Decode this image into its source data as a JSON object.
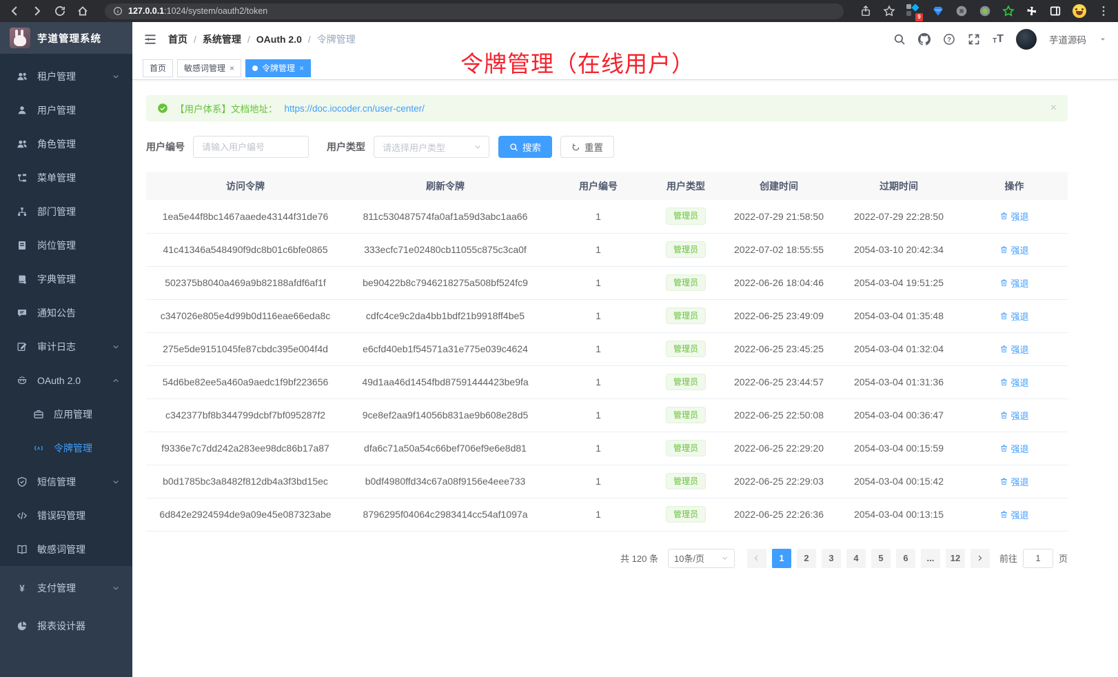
{
  "browser": {
    "url_host": "127.0.0.1",
    "url_path": ":1024/system/oauth2/token",
    "extension_badge": "9"
  },
  "app": {
    "logo_title": "芋道管理系统"
  },
  "sidebar": {
    "items": [
      {
        "id": "tenant",
        "label": "租户管理",
        "icon": "people",
        "arrow": "down",
        "section": "dark"
      },
      {
        "id": "user",
        "label": "用户管理",
        "icon": "user",
        "section": "dark"
      },
      {
        "id": "role",
        "label": "角色管理",
        "icon": "people",
        "section": "dark"
      },
      {
        "id": "menu",
        "label": "菜单管理",
        "icon": "tree",
        "section": "dark"
      },
      {
        "id": "dept",
        "label": "部门管理",
        "icon": "org",
        "section": "dark"
      },
      {
        "id": "post",
        "label": "岗位管理",
        "icon": "badge",
        "section": "dark"
      },
      {
        "id": "dict",
        "label": "字典管理",
        "icon": "dict",
        "section": "dark"
      },
      {
        "id": "notice",
        "label": "通知公告",
        "icon": "chat",
        "section": "dark"
      },
      {
        "id": "audit-log",
        "label": "审计日志",
        "icon": "editlog",
        "arrow": "down",
        "section": "dark"
      },
      {
        "id": "oauth2",
        "label": "OAuth 2.0",
        "icon": "robot",
        "arrow": "up",
        "section": "dark"
      },
      {
        "id": "oauth2-app",
        "label": "应用管理",
        "icon": "suitcase",
        "section": "dark",
        "sub": true
      },
      {
        "id": "oauth2-token",
        "label": "令牌管理",
        "icon": "signal",
        "section": "dark",
        "sub": true,
        "active": true
      },
      {
        "id": "sms",
        "label": "短信管理",
        "icon": "shield",
        "arrow": "down",
        "section": "dark"
      },
      {
        "id": "errcode",
        "label": "错误码管理",
        "icon": "code",
        "section": "dark"
      },
      {
        "id": "sensitive-word",
        "label": "敏感词管理",
        "icon": "openbook",
        "section": "dark"
      },
      {
        "id": "pay",
        "label": "支付管理",
        "icon": "yen",
        "arrow": "down",
        "section": "root"
      },
      {
        "id": "report",
        "label": "报表设计器",
        "icon": "pie",
        "section": "root"
      }
    ]
  },
  "header": {
    "breadcrumb": [
      "首页",
      "系统管理",
      "OAuth 2.0",
      "令牌管理"
    ],
    "username": "芋道源码"
  },
  "tabs": [
    {
      "label": "首页",
      "closable": false,
      "active": false
    },
    {
      "label": "敏感词管理",
      "closable": true,
      "active": false
    },
    {
      "label": "令牌管理",
      "closable": true,
      "active": true
    }
  ],
  "overlay": {
    "title": "令牌管理（在线用户）",
    "color": "#f5222d"
  },
  "alert": {
    "text": "【用户体系】文档地址：",
    "link": "https://doc.iocoder.cn/user-center/",
    "close": "×"
  },
  "filters": {
    "user_id_label": "用户编号",
    "user_id_placeholder": "请输入用户编号",
    "user_type_label": "用户类型",
    "user_type_placeholder": "请选择用户类型",
    "search_label": "搜索",
    "reset_label": "重置"
  },
  "table": {
    "columns": [
      "访问令牌",
      "刷新令牌",
      "用户编号",
      "用户类型",
      "创建时间",
      "过期时间",
      "操作"
    ],
    "rows": [
      [
        "1ea5e44f8bc1467aaede43144f31de76",
        "811c530487574fa0af1a59d3abc1aa66",
        "1",
        "管理员",
        "2022-07-29 21:58:50",
        "2022-07-29 22:28:50",
        "强退"
      ],
      [
        "41c41346a548490f9dc8b01c6bfe0865",
        "333ecfc71e02480cb11055c875c3ca0f",
        "1",
        "管理员",
        "2022-07-02 18:55:55",
        "2054-03-10 20:42:34",
        "强退"
      ],
      [
        "502375b8040a469a9b82188afdf6af1f",
        "be90422b8c7946218275a508bf524fc9",
        "1",
        "管理员",
        "2022-06-26 18:04:46",
        "2054-03-04 19:51:25",
        "强退"
      ],
      [
        "c347026e805e4d99b0d116eae66eda8c",
        "cdfc4ce9c2da4bb1bdf21b9918ff4be5",
        "1",
        "管理员",
        "2022-06-25 23:49:09",
        "2054-03-04 01:35:48",
        "强退"
      ],
      [
        "275e5de9151045fe87cbdc395e004f4d",
        "e6cfd40eb1f54571a31e775e039c4624",
        "1",
        "管理员",
        "2022-06-25 23:45:25",
        "2054-03-04 01:32:04",
        "强退"
      ],
      [
        "54d6be82ee5a460a9aedc1f9bf223656",
        "49d1aa46d1454fbd87591444423be9fa",
        "1",
        "管理员",
        "2022-06-25 23:44:57",
        "2054-03-04 01:31:36",
        "强退"
      ],
      [
        "c342377bf8b344799dcbf7bf095287f2",
        "9ce8ef2aa9f14056b831ae9b608e28d5",
        "1",
        "管理员",
        "2022-06-25 22:50:08",
        "2054-03-04 00:36:47",
        "强退"
      ],
      [
        "f9336e7c7dd242a283ee98dc86b17a87",
        "dfa6c71a50a54c66bef706ef9e6e8d81",
        "1",
        "管理员",
        "2022-06-25 22:29:20",
        "2054-03-04 00:15:59",
        "强退"
      ],
      [
        "b0d1785bc3a8482f812db4a3f3bd15ec",
        "b0df4980ffd34c67a08f9156e4eee733",
        "1",
        "管理员",
        "2022-06-25 22:29:03",
        "2054-03-04 00:15:42",
        "强退"
      ],
      [
        "6d842e2924594de9a09e45e087323abe",
        "8796295f04064c2983414cc54af1097a",
        "1",
        "管理员",
        "2022-06-25 22:26:36",
        "2054-03-04 00:13:15",
        "强退"
      ]
    ]
  },
  "pagination": {
    "total": "共 120 条",
    "page_size": "10条/页",
    "pages": [
      "1",
      "2",
      "3",
      "4",
      "5",
      "6",
      "...",
      "12"
    ],
    "active_page": "1",
    "goto_label": "前往",
    "goto_value": "1",
    "goto_unit": "页"
  },
  "colors": {
    "accent": "#409eff",
    "success": "#67c23a",
    "overlay_red": "#f5222d",
    "sidebar_dark": "#22303f",
    "sidebar_root": "#2f3c4e"
  }
}
